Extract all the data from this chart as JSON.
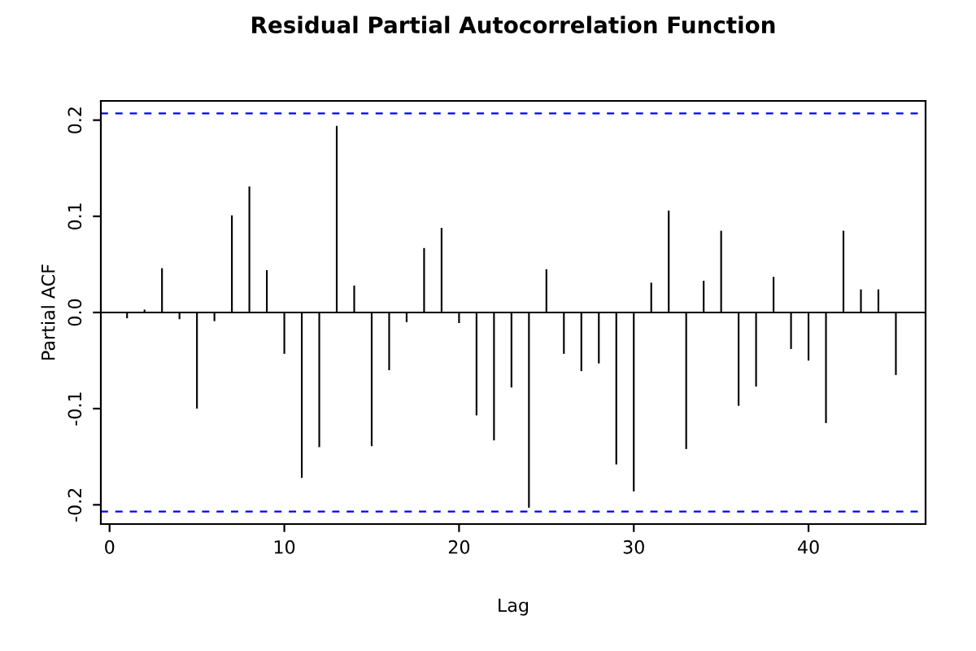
{
  "chart_data": {
    "type": "bar",
    "title": "Residual Partial Autocorrelation Function",
    "xlabel": "Lag",
    "ylabel": "Partial ACF",
    "x": [
      1,
      2,
      3,
      4,
      5,
      6,
      7,
      8,
      9,
      10,
      11,
      12,
      13,
      14,
      15,
      16,
      17,
      18,
      19,
      20,
      21,
      22,
      23,
      24,
      25,
      26,
      27,
      28,
      29,
      30,
      31,
      32,
      33,
      34,
      35,
      36,
      37,
      38,
      39,
      40,
      41,
      42,
      43,
      44,
      45
    ],
    "values": [
      -0.006,
      0.003,
      0.046,
      -0.007,
      -0.1,
      -0.009,
      0.101,
      0.131,
      0.044,
      -0.043,
      -0.172,
      -0.14,
      0.194,
      0.028,
      -0.139,
      -0.06,
      -0.01,
      0.067,
      0.088,
      -0.011,
      -0.107,
      -0.133,
      -0.078,
      -0.203,
      0.045,
      -0.043,
      -0.061,
      -0.053,
      -0.158,
      -0.186,
      0.031,
      0.106,
      -0.142,
      0.033,
      0.085,
      -0.097,
      -0.077,
      0.037,
      -0.038,
      -0.05,
      -0.115,
      0.085,
      0.024,
      0.024,
      -0.065
    ],
    "color": "#000000",
    "xlim": [
      -0.5,
      46.7
    ],
    "ylim": [
      -0.22,
      0.22
    ],
    "xticks": [
      0,
      10,
      20,
      30,
      40
    ],
    "yticks": [
      -0.2,
      -0.1,
      {
        "value": 0,
        "label": "0.0"
      },
      0.1,
      0.2
    ],
    "ref_lines": [
      {
        "axis": "y",
        "value": 0.207,
        "color": "#0000ff",
        "line_style": "dashed"
      },
      {
        "axis": "y",
        "value": -0.207,
        "color": "#0000ff",
        "line_style": "dashed"
      },
      {
        "axis": "y",
        "value": 0,
        "color": "#000000",
        "line_style": "solid"
      }
    ],
    "grid": false,
    "legend": false
  }
}
